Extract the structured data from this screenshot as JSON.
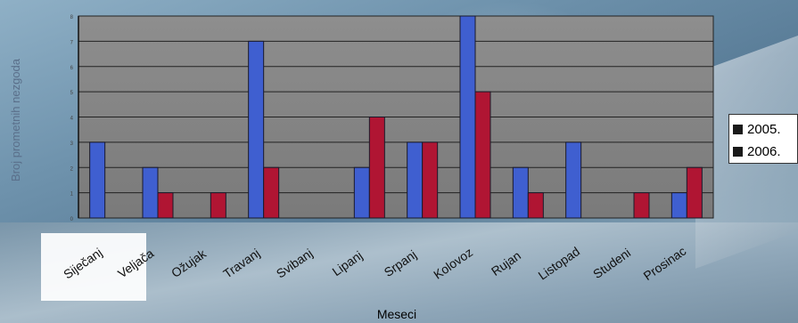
{
  "chart_data": {
    "type": "bar",
    "title": "",
    "xlabel": "Meseci",
    "ylabel": "Broj prometnih nezgoda",
    "ylim": [
      0,
      8
    ],
    "yticks": [
      "0",
      "1",
      "2",
      "3",
      "4",
      "5",
      "6",
      "7",
      "8"
    ],
    "grid": true,
    "legend_position": "right",
    "categories": [
      "Siječanj",
      "Veljača",
      "Ožujak",
      "Travanj",
      "Svibanj",
      "Lipanj",
      "Srpanj",
      "Kolovoz",
      "Rujan",
      "Listopad",
      "Studeni",
      "Prosinac"
    ],
    "series": [
      {
        "name": "2005.",
        "color": "#3f5fd0",
        "values": [
          3,
          2,
          0,
          7,
          0,
          2,
          3,
          8,
          2,
          3,
          0,
          1
        ]
      },
      {
        "name": "2006.",
        "color": "#b01533",
        "values": [
          0,
          1,
          1,
          2,
          0,
          4,
          3,
          5,
          1,
          0,
          1,
          2
        ]
      }
    ]
  }
}
